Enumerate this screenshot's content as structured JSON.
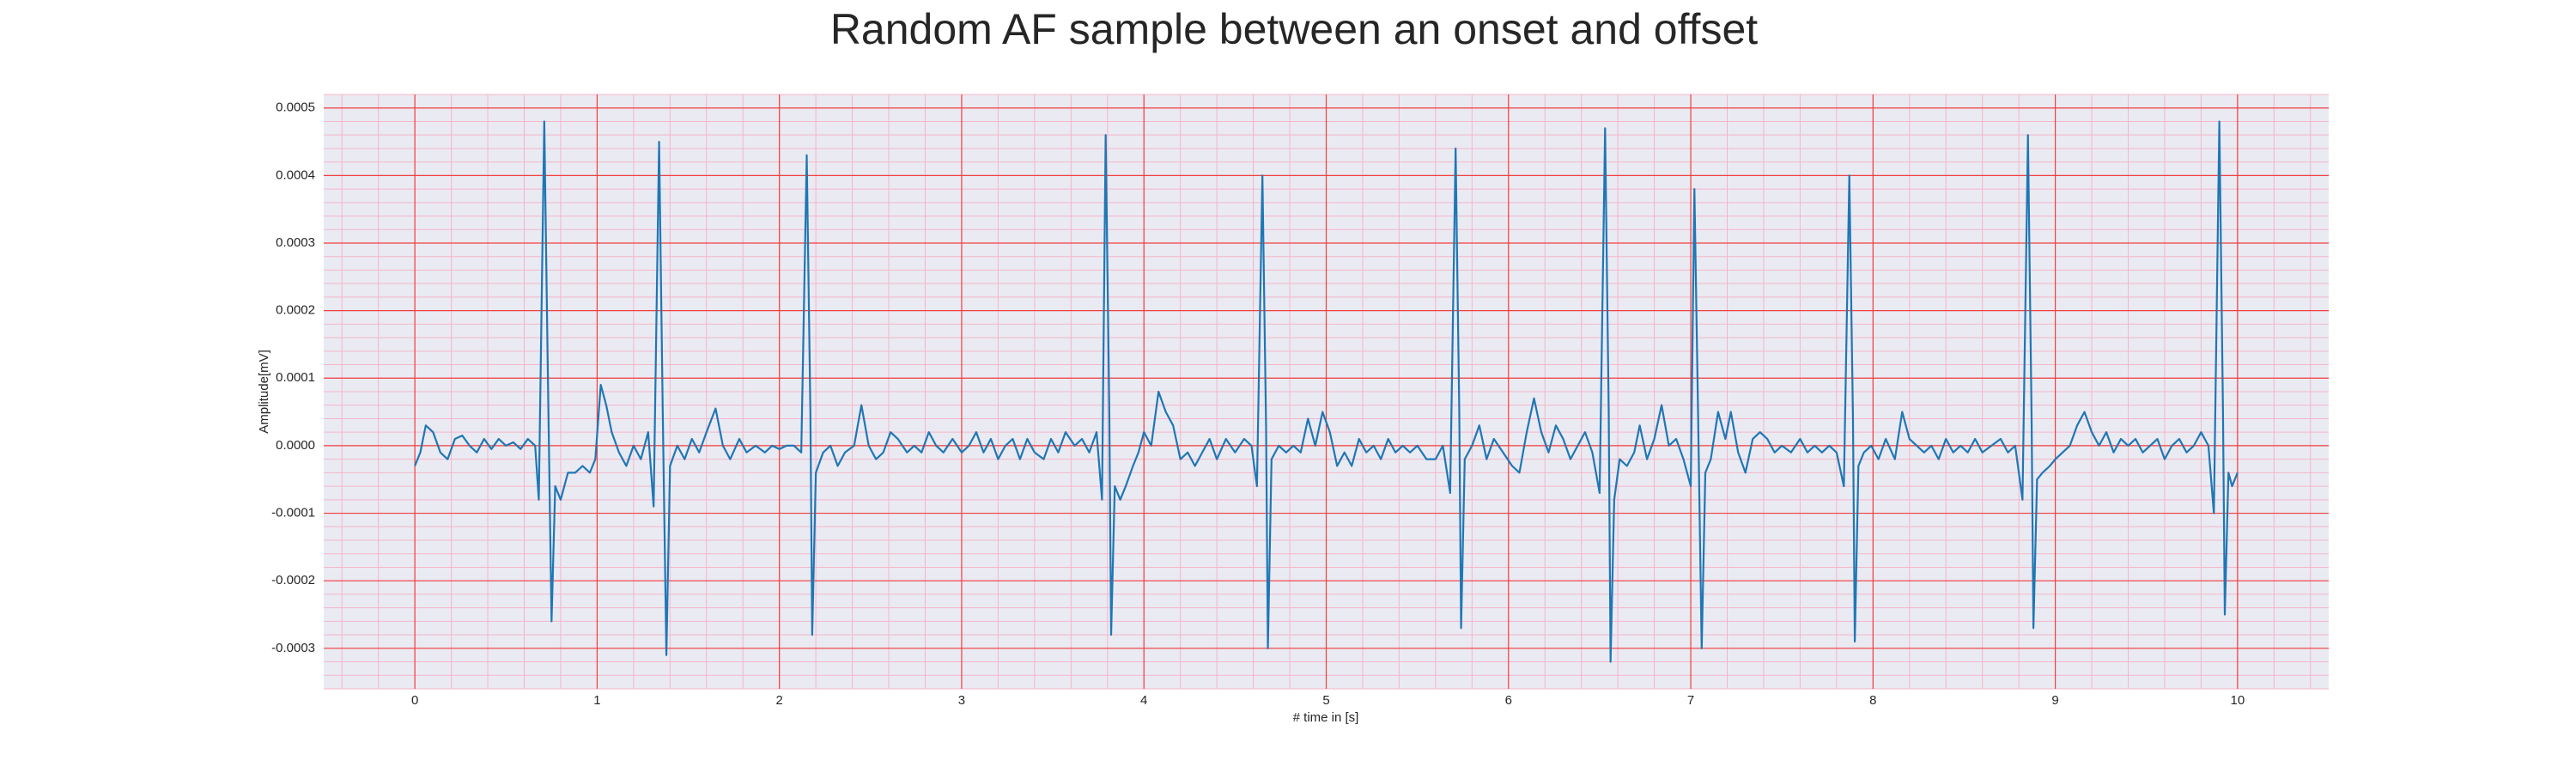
{
  "chart_data": {
    "type": "line",
    "title": "Random AF sample between an onset and offset",
    "x_label": "# time in [s]",
    "y_label": "Amplitude[mV]",
    "color": "#1f77b4",
    "grid": true,
    "minor_grid": true,
    "xlim": [
      -0.5,
      10.5
    ],
    "ylim": [
      -0.00036,
      0.00052
    ],
    "xticks": [
      0,
      1,
      2,
      3,
      4,
      5,
      6,
      7,
      8,
      9,
      10
    ],
    "yticks": [
      {
        "value": -0.0003,
        "label": "-0.0003"
      },
      {
        "value": -0.0002,
        "label": "-0.0002"
      },
      {
        "value": -0.0001,
        "label": "-0.0001"
      },
      {
        "value": 0,
        "label": "0.0000"
      },
      {
        "value": 0.0001,
        "label": "0.0001"
      },
      {
        "value": 0.0002,
        "label": "0.0002"
      },
      {
        "value": 0.0003,
        "label": "0.0003"
      },
      {
        "value": 0.0004,
        "label": "0.0004"
      },
      {
        "value": 0.0005,
        "label": "0.0005"
      }
    ],
    "x": [
      0,
      0.03,
      0.06,
      0.1,
      0.14,
      0.18,
      0.22,
      0.26,
      0.3,
      0.34,
      0.38,
      0.42,
      0.46,
      0.5,
      0.54,
      0.58,
      0.62,
      0.66,
      0.68,
      0.71,
      0.73,
      0.75,
      0.77,
      0.8,
      0.84,
      0.88,
      0.92,
      0.96,
      0.99,
      1.02,
      1.05,
      1.08,
      1.12,
      1.16,
      1.2,
      1.24,
      1.28,
      1.31,
      1.34,
      1.36,
      1.38,
      1.4,
      1.44,
      1.48,
      1.52,
      1.56,
      1.6,
      1.65,
      1.69,
      1.73,
      1.78,
      1.82,
      1.87,
      1.92,
      1.96,
      2,
      2.04,
      2.08,
      2.12,
      2.15,
      2.17,
      2.18,
      2.2,
      2.24,
      2.28,
      2.32,
      2.36,
      2.41,
      2.45,
      2.49,
      2.53,
      2.57,
      2.61,
      2.65,
      2.7,
      2.74,
      2.78,
      2.82,
      2.86,
      2.9,
      2.95,
      3,
      3.04,
      3.08,
      3.12,
      3.16,
      3.2,
      3.24,
      3.28,
      3.32,
      3.36,
      3.4,
      3.45,
      3.49,
      3.53,
      3.57,
      3.62,
      3.66,
      3.7,
      3.74,
      3.77,
      3.79,
      3.81,
      3.82,
      3.84,
      3.87,
      3.9,
      3.94,
      3.97,
      4,
      4.04,
      4.08,
      4.12,
      4.16,
      4.2,
      4.24,
      4.28,
      4.32,
      4.36,
      4.4,
      4.45,
      4.5,
      4.55,
      4.59,
      4.62,
      4.65,
      4.67,
      4.68,
      4.7,
      4.74,
      4.78,
      4.82,
      4.86,
      4.9,
      4.94,
      4.98,
      5.02,
      5.06,
      5.1,
      5.14,
      5.18,
      5.22,
      5.26,
      5.3,
      5.34,
      5.38,
      5.42,
      5.46,
      5.5,
      5.55,
      5.6,
      5.64,
      5.68,
      5.71,
      5.73,
      5.74,
      5.76,
      5.8,
      5.84,
      5.88,
      5.92,
      5.97,
      6.02,
      6.06,
      6.1,
      6.14,
      6.18,
      6.22,
      6.26,
      6.3,
      6.34,
      6.38,
      6.42,
      6.46,
      6.5,
      6.53,
      6.55,
      6.56,
      6.58,
      6.61,
      6.65,
      6.69,
      6.72,
      6.76,
      6.8,
      6.84,
      6.88,
      6.92,
      6.96,
      7,
      7.02,
      7.04,
      7.06,
      7.08,
      7.11,
      7.15,
      7.19,
      7.22,
      7.26,
      7.3,
      7.34,
      7.38,
      7.42,
      7.46,
      7.5,
      7.55,
      7.6,
      7.64,
      7.68,
      7.72,
      7.76,
      7.8,
      7.84,
      7.87,
      7.89,
      7.9,
      7.92,
      7.95,
      7.99,
      8.03,
      8.07,
      8.12,
      8.16,
      8.2,
      8.24,
      8.28,
      8.32,
      8.36,
      8.4,
      8.44,
      8.48,
      8.52,
      8.56,
      8.6,
      8.65,
      8.7,
      8.74,
      8.78,
      8.82,
      8.85,
      8.87,
      8.88,
      8.9,
      8.93,
      8.97,
      9,
      9.04,
      9.08,
      9.12,
      9.16,
      9.2,
      9.24,
      9.28,
      9.32,
      9.36,
      9.4,
      9.44,
      9.48,
      9.52,
      9.56,
      9.6,
      9.64,
      9.68,
      9.72,
      9.76,
      9.8,
      9.84,
      9.87,
      9.9,
      9.92,
      9.93,
      9.95,
      9.97,
      10
    ],
    "values": [
      -3e-05,
      -1e-05,
      3e-05,
      2e-05,
      -1e-05,
      -2e-05,
      1e-05,
      1.5e-05,
      0,
      -1e-05,
      1e-05,
      -5e-06,
      1e-05,
      0,
      5e-06,
      -5e-06,
      1e-05,
      0,
      -8e-05,
      0.00048,
      0.0001,
      -0.00026,
      -6e-05,
      -8e-05,
      -4e-05,
      -4e-05,
      -3e-05,
      -4e-05,
      -2e-05,
      9e-05,
      6e-05,
      2e-05,
      -1e-05,
      -3e-05,
      0,
      -2e-05,
      2e-05,
      -9e-05,
      0.00045,
      5e-05,
      -0.00031,
      -3e-05,
      0,
      -2e-05,
      1e-05,
      -1e-05,
      2e-05,
      5.5e-05,
      0,
      -2e-05,
      1e-05,
      -1e-05,
      0,
      -1e-05,
      0,
      -5e-06,
      0,
      0,
      -1e-05,
      0.00043,
      5e-05,
      -0.00028,
      -4e-05,
      -1e-05,
      0,
      -3e-05,
      -1e-05,
      0,
      6e-05,
      0,
      -2e-05,
      -1e-05,
      2e-05,
      1e-05,
      -1e-05,
      0,
      -1e-05,
      2e-05,
      0,
      -1e-05,
      1e-05,
      -1e-05,
      0,
      2e-05,
      -1e-05,
      1e-05,
      -2e-05,
      0,
      1e-05,
      -2e-05,
      1e-05,
      -1e-05,
      -2e-05,
      1e-05,
      -1e-05,
      2e-05,
      0,
      1e-05,
      -1e-05,
      2e-05,
      -8e-05,
      0.00046,
      5e-05,
      -0.00028,
      -6e-05,
      -8e-05,
      -6e-05,
      -3e-05,
      -1e-05,
      2e-05,
      0,
      8e-05,
      5e-05,
      3e-05,
      -2e-05,
      -1e-05,
      -3e-05,
      -1e-05,
      1e-05,
      -2e-05,
      1e-05,
      -1e-05,
      1e-05,
      0,
      -6e-05,
      0.0004,
      3e-05,
      -0.0003,
      -2e-05,
      0,
      -1e-05,
      0,
      -1e-05,
      4e-05,
      0,
      5e-05,
      2e-05,
      -3e-05,
      -1e-05,
      -3e-05,
      1e-05,
      -1e-05,
      0,
      -2e-05,
      1e-05,
      -1e-05,
      0,
      -1e-05,
      0,
      -2e-05,
      -2e-05,
      0,
      -7e-05,
      0.00044,
      5e-05,
      -0.00027,
      -2e-05,
      0,
      3e-05,
      -2e-05,
      1e-05,
      -1e-05,
      -3e-05,
      -4e-05,
      2e-05,
      7e-05,
      2e-05,
      -1e-05,
      3e-05,
      1e-05,
      -2e-05,
      0,
      2e-05,
      -1e-05,
      -7e-05,
      0.00047,
      5e-05,
      -0.00032,
      -8e-05,
      -2e-05,
      -3e-05,
      -1e-05,
      3e-05,
      -2e-05,
      1e-05,
      6e-05,
      0,
      1e-05,
      -2e-05,
      -6e-05,
      0.00038,
      5e-05,
      -0.0003,
      -4e-05,
      -2e-05,
      5e-05,
      1e-05,
      5e-05,
      -1e-05,
      -4e-05,
      1e-05,
      2e-05,
      1e-05,
      -1e-05,
      0,
      -1e-05,
      1e-05,
      -1e-05,
      0,
      -1e-05,
      0,
      -1e-05,
      -6e-05,
      0.0004,
      4e-05,
      -0.00029,
      -3e-05,
      -1e-05,
      0,
      -2e-05,
      1e-05,
      -2e-05,
      5e-05,
      1e-05,
      0,
      -1e-05,
      0,
      -2e-05,
      1e-05,
      -1e-05,
      0,
      -1e-05,
      1e-05,
      -1e-05,
      0,
      1e-05,
      -1e-05,
      0,
      -8e-05,
      0.00046,
      4e-05,
      -0.00027,
      -5e-05,
      -4e-05,
      -3e-05,
      -2e-05,
      -1e-05,
      0,
      3e-05,
      5e-05,
      2e-05,
      0,
      2e-05,
      -1e-05,
      1e-05,
      0,
      1e-05,
      -1e-05,
      0,
      1e-05,
      -2e-05,
      0,
      1e-05,
      -1e-05,
      0,
      2e-05,
      0,
      -0.0001,
      0.00048,
      5e-05,
      -0.00025,
      -4e-05,
      -6e-05,
      -4e-05
    ]
  }
}
